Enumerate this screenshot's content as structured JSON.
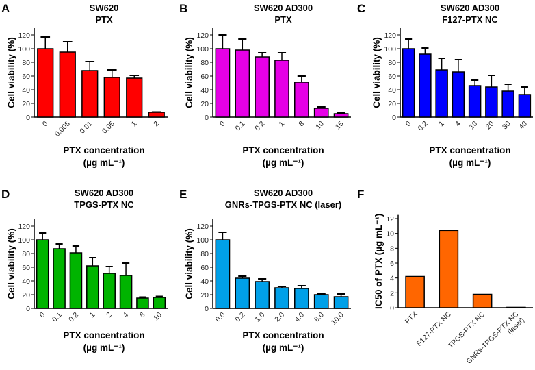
{
  "chart_data": [
    {
      "panel": "A",
      "type": "bar",
      "title": [
        "SW620",
        "PTX"
      ],
      "xlabel": [
        "PTX concentration",
        "(µg mL⁻¹)"
      ],
      "ylabel": "Cell viability (%)",
      "ylim": [
        0,
        130
      ],
      "yticks": [
        0,
        20,
        40,
        60,
        80,
        100,
        120
      ],
      "categories": [
        "0",
        "0.005",
        "0.01",
        "0.05",
        "1",
        "2"
      ],
      "values": [
        100,
        95,
        68,
        58,
        57,
        7
      ],
      "errors": [
        17,
        15,
        13,
        11,
        4,
        0.5
      ],
      "color": "#ff0000"
    },
    {
      "panel": "B",
      "type": "bar",
      "title": [
        "SW620 AD300",
        "PTX"
      ],
      "xlabel": [
        "PTX concentration",
        "(µg mL⁻¹)"
      ],
      "ylabel": "Cell viability (%)",
      "ylim": [
        0,
        130
      ],
      "yticks": [
        0,
        20,
        40,
        60,
        80,
        100,
        120
      ],
      "categories": [
        "0",
        "0.1",
        "0.2",
        "1",
        "8",
        "10",
        "15"
      ],
      "values": [
        100,
        98,
        88,
        83,
        51,
        13,
        5
      ],
      "errors": [
        20,
        16,
        6,
        11,
        9,
        2,
        1
      ],
      "color": "#e600e6"
    },
    {
      "panel": "C",
      "type": "bar",
      "title": [
        "SW620 AD300",
        "F127-PTX NC"
      ],
      "xlabel": [
        "PTX concentration",
        "(µg mL⁻¹)"
      ],
      "ylabel": "Cell viability (%)",
      "ylim": [
        0,
        130
      ],
      "yticks": [
        0,
        20,
        40,
        60,
        80,
        100,
        120
      ],
      "categories": [
        "0",
        "0.2",
        "1",
        "4",
        "10",
        "20",
        "30",
        "40"
      ],
      "values": [
        100,
        92,
        69,
        66,
        46,
        44,
        38,
        33
      ],
      "errors": [
        14,
        9,
        17,
        18,
        8,
        17,
        10,
        11
      ],
      "color": "#0000ff"
    },
    {
      "panel": "D",
      "type": "bar",
      "title": [
        "SW620 AD300",
        "TPGS-PTX NC"
      ],
      "xlabel": [
        "PTX concentration",
        "(µg mL⁻¹)"
      ],
      "ylabel": "Cell viability (%)",
      "ylim": [
        0,
        130
      ],
      "yticks": [
        0,
        20,
        40,
        60,
        80,
        100,
        120
      ],
      "categories": [
        "0",
        "0.1",
        "0.2",
        "1",
        "2",
        "4",
        "8",
        "10"
      ],
      "values": [
        100,
        87,
        81,
        62,
        51,
        48,
        15,
        16
      ],
      "errors": [
        10,
        7,
        10,
        12,
        10,
        18,
        1.5,
        1.5
      ],
      "color": "#00b400"
    },
    {
      "panel": "E",
      "type": "bar",
      "title": [
        "SW620 AD300",
        "GNRs-TPGS-PTX NC (laser)"
      ],
      "xlabel": [
        "PTX concentration",
        "(µg mL⁻¹)"
      ],
      "ylabel": "Cell viability (%)",
      "ylim": [
        0,
        130
      ],
      "yticks": [
        0,
        20,
        40,
        60,
        80,
        100,
        120
      ],
      "categories": [
        "0.0",
        "0.2",
        "1.0",
        "2.0",
        "4.0",
        "8.0",
        "10.0"
      ],
      "values": [
        100,
        44,
        39,
        30,
        29,
        20,
        17
      ],
      "errors": [
        11,
        3,
        4,
        2,
        4,
        1.5,
        4
      ],
      "color": "#00a0e8"
    },
    {
      "panel": "F",
      "type": "bar",
      "title": [],
      "xlabel": [],
      "ylabel": "IC50 of PTX (µg mL⁻¹)",
      "ylim": [
        0,
        12.5
      ],
      "yticks": [
        0,
        2,
        4,
        6,
        8,
        10,
        12
      ],
      "categories": [
        "PTX",
        "F127-PTX NC",
        "TPGS-PTX NC",
        "GNRs-TPGS-PTX NC (laser)"
      ],
      "values": [
        4.2,
        10.4,
        1.8,
        0.05
      ],
      "errors": [],
      "color": "#ff6600"
    }
  ]
}
